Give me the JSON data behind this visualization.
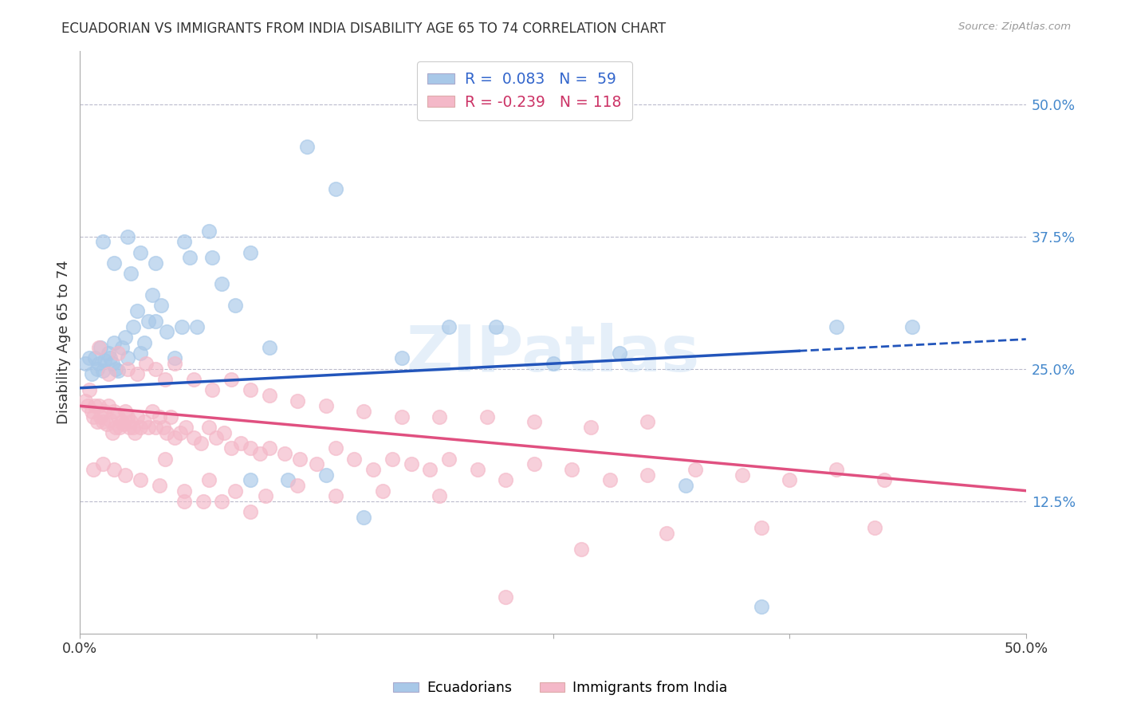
{
  "title": "ECUADORIAN VS IMMIGRANTS FROM INDIA DISABILITY AGE 65 TO 74 CORRELATION CHART",
  "source": "Source: ZipAtlas.com",
  "ylabel": "Disability Age 65 to 74",
  "watermark": "ZIPatlas",
  "xmin": 0.0,
  "xmax": 0.5,
  "ymin": 0.0,
  "ymax": 0.55,
  "ytick_vals": [
    0.125,
    0.25,
    0.375,
    0.5
  ],
  "ytick_labels": [
    "12.5%",
    "25.0%",
    "37.5%",
    "50.0%"
  ],
  "blue_line": [
    0.0,
    0.232,
    0.5,
    0.278
  ],
  "blue_line_solid_end": 0.38,
  "pink_line": [
    0.0,
    0.215,
    0.5,
    0.135
  ],
  "ecuadorians": {
    "color": "#a8c8e8",
    "edge_color": "#6699cc",
    "x": [
      0.003,
      0.005,
      0.006,
      0.008,
      0.009,
      0.01,
      0.011,
      0.012,
      0.013,
      0.015,
      0.016,
      0.017,
      0.018,
      0.019,
      0.02,
      0.022,
      0.024,
      0.025,
      0.027,
      0.028,
      0.03,
      0.032,
      0.034,
      0.036,
      0.038,
      0.04,
      0.043,
      0.046,
      0.05,
      0.054,
      0.058,
      0.062,
      0.068,
      0.075,
      0.082,
      0.09,
      0.1,
      0.11,
      0.12,
      0.135,
      0.15,
      0.17,
      0.195,
      0.22,
      0.25,
      0.285,
      0.32,
      0.36,
      0.4,
      0.44,
      0.012,
      0.018,
      0.025,
      0.032,
      0.04,
      0.055,
      0.07,
      0.09,
      0.13
    ],
    "y": [
      0.255,
      0.26,
      0.245,
      0.26,
      0.25,
      0.255,
      0.27,
      0.248,
      0.258,
      0.265,
      0.26,
      0.255,
      0.275,
      0.25,
      0.248,
      0.27,
      0.28,
      0.26,
      0.34,
      0.29,
      0.305,
      0.265,
      0.275,
      0.295,
      0.32,
      0.295,
      0.31,
      0.285,
      0.26,
      0.29,
      0.355,
      0.29,
      0.38,
      0.33,
      0.31,
      0.145,
      0.27,
      0.145,
      0.46,
      0.42,
      0.11,
      0.26,
      0.29,
      0.29,
      0.255,
      0.265,
      0.14,
      0.026,
      0.29,
      0.29,
      0.37,
      0.35,
      0.375,
      0.36,
      0.35,
      0.37,
      0.355,
      0.36,
      0.15
    ]
  },
  "india": {
    "color": "#f4b8c8",
    "edge_color": "#e07090",
    "x": [
      0.003,
      0.004,
      0.005,
      0.006,
      0.007,
      0.008,
      0.009,
      0.01,
      0.011,
      0.012,
      0.013,
      0.014,
      0.015,
      0.016,
      0.017,
      0.018,
      0.019,
      0.02,
      0.021,
      0.022,
      0.023,
      0.024,
      0.025,
      0.026,
      0.027,
      0.028,
      0.029,
      0.03,
      0.032,
      0.034,
      0.036,
      0.038,
      0.04,
      0.042,
      0.044,
      0.046,
      0.048,
      0.05,
      0.053,
      0.056,
      0.06,
      0.064,
      0.068,
      0.072,
      0.076,
      0.08,
      0.085,
      0.09,
      0.095,
      0.1,
      0.108,
      0.116,
      0.125,
      0.135,
      0.145,
      0.155,
      0.165,
      0.175,
      0.185,
      0.195,
      0.21,
      0.225,
      0.24,
      0.26,
      0.28,
      0.3,
      0.325,
      0.35,
      0.375,
      0.4,
      0.425,
      0.01,
      0.015,
      0.02,
      0.025,
      0.03,
      0.035,
      0.04,
      0.045,
      0.05,
      0.06,
      0.07,
      0.08,
      0.09,
      0.1,
      0.115,
      0.13,
      0.15,
      0.17,
      0.19,
      0.215,
      0.24,
      0.27,
      0.3,
      0.007,
      0.012,
      0.018,
      0.024,
      0.032,
      0.042,
      0.055,
      0.068,
      0.082,
      0.098,
      0.115,
      0.135,
      0.16,
      0.19,
      0.225,
      0.265,
      0.31,
      0.36,
      0.42,
      0.045,
      0.055,
      0.065,
      0.075,
      0.09
    ],
    "y": [
      0.22,
      0.215,
      0.23,
      0.21,
      0.205,
      0.215,
      0.2,
      0.215,
      0.205,
      0.2,
      0.21,
      0.198,
      0.215,
      0.202,
      0.19,
      0.21,
      0.195,
      0.205,
      0.195,
      0.2,
      0.198,
      0.21,
      0.205,
      0.195,
      0.2,
      0.195,
      0.19,
      0.205,
      0.195,
      0.2,
      0.195,
      0.21,
      0.195,
      0.205,
      0.195,
      0.19,
      0.205,
      0.185,
      0.19,
      0.195,
      0.185,
      0.18,
      0.195,
      0.185,
      0.19,
      0.175,
      0.18,
      0.175,
      0.17,
      0.175,
      0.17,
      0.165,
      0.16,
      0.175,
      0.165,
      0.155,
      0.165,
      0.16,
      0.155,
      0.165,
      0.155,
      0.145,
      0.16,
      0.155,
      0.145,
      0.15,
      0.155,
      0.15,
      0.145,
      0.155,
      0.145,
      0.27,
      0.245,
      0.265,
      0.25,
      0.245,
      0.255,
      0.25,
      0.24,
      0.255,
      0.24,
      0.23,
      0.24,
      0.23,
      0.225,
      0.22,
      0.215,
      0.21,
      0.205,
      0.205,
      0.205,
      0.2,
      0.195,
      0.2,
      0.155,
      0.16,
      0.155,
      0.15,
      0.145,
      0.14,
      0.135,
      0.145,
      0.135,
      0.13,
      0.14,
      0.13,
      0.135,
      0.13,
      0.035,
      0.08,
      0.095,
      0.1,
      0.1,
      0.165,
      0.125,
      0.125,
      0.125,
      0.115
    ]
  }
}
